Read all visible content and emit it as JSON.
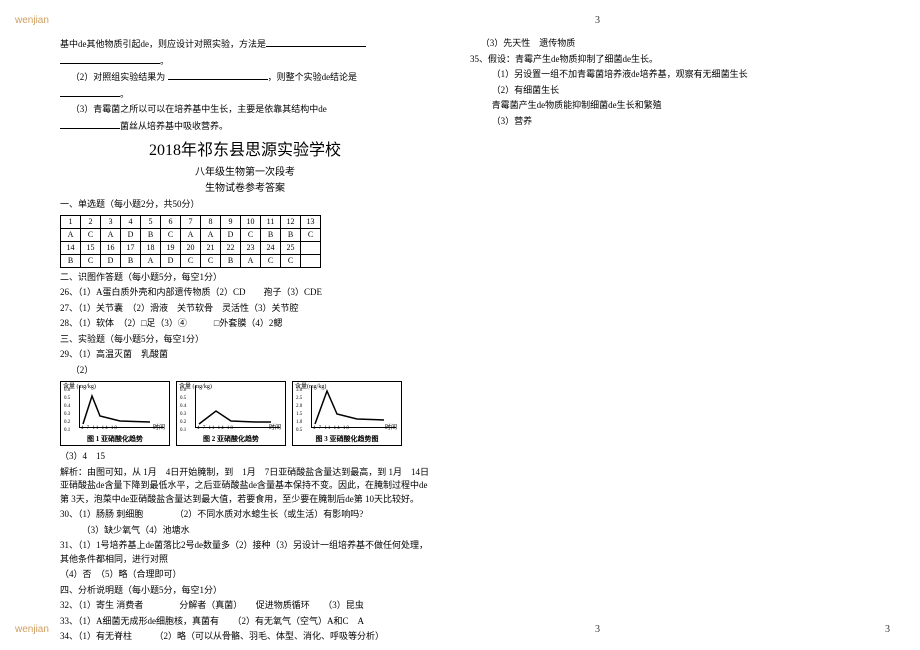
{
  "watermark": "wenjian",
  "pageNumber": "3",
  "leftCol": {
    "q_top_1": "基中de其他物质引起de，则应设计对照实验，方法是",
    "q_top_2": "。",
    "q_top_3": "（2）对照组实验结果为",
    "q_top_4": "，则整个实验de结论是",
    "q_top_5": "。",
    "q_top_6": "（3）青霉菌之所以可以在培养基中生长，主要是依靠其结构中de",
    "q_top_7": "菌丝从培养基中吸收营养。",
    "title": "2018年祁东县思源实验学校",
    "subtitle1": "八年级生物第一次段考",
    "subtitle2": "生物试卷参考答案",
    "section1": "一、单选题（每小题2分，共50分）",
    "tableHeader1": [
      "1",
      "2",
      "3",
      "4",
      "5",
      "6",
      "7",
      "8",
      "9",
      "10",
      "11",
      "12",
      "13"
    ],
    "tableRow1": [
      "A",
      "C",
      "A",
      "D",
      "B",
      "C",
      "A",
      "A",
      "D",
      "C",
      "B",
      "B",
      "C"
    ],
    "tableHeader2": [
      "14",
      "15",
      "16",
      "17",
      "18",
      "19",
      "20",
      "21",
      "22",
      "23",
      "24",
      "25",
      ""
    ],
    "tableRow2": [
      "B",
      "C",
      "D",
      "B",
      "A",
      "D",
      "C",
      "C",
      "B",
      "A",
      "C",
      "C",
      ""
    ],
    "section2": "二、识图作答题（每小题5分，每空1分）",
    "a26": "26、（1）A蛋白质外壳和内部遗传物质（2）CD　　孢子（3）CDE",
    "a27": "27、（1）关节囊　（2）滑液　关节软骨　灵活性（3）关节腔",
    "a28": "28、（1）软体　（2）□足（3）④　　　□外套膜（4）2鳃",
    "section3": "三、实验题（每小题5分，每空1分）",
    "a29a": "29、（1）高温灭菌　乳酸菌",
    "a29b": "（2）",
    "chart1": {
      "ylabel": "含量 (mg/kg)",
      "yticks": [
        "0.6",
        "0.5",
        "0.4",
        "0.3",
        "0.2",
        "0.1"
      ],
      "xticks": "4 7 11 14 18",
      "xlabel": "时间",
      "caption": "图 1 亚硝酸化趋势"
    },
    "chart2": {
      "ylabel": "含量 (mg/kg)",
      "yticks": [
        "0.6",
        "0.5",
        "0.4",
        "0.3",
        "0.2",
        "0.1"
      ],
      "xticks": "4 7 11 14 18",
      "xlabel": "时间",
      "caption": "图 2 亚硝酸化趋势"
    },
    "chart3": {
      "ylabel": "含量(mg/kg)",
      "yticks": [
        "3.0",
        "2.5",
        "2.0",
        "1.5",
        "1.0",
        "0.5"
      ],
      "xticks": "4 7 11 14 18",
      "xlabel": "时间",
      "caption": "图 3 亚硝酸化趋势图"
    },
    "a29c": "（3）4　15",
    "a29d": "解析：由图可知，从 1月　4日开始腌制，到　1月　7日亚硝酸盐含量达到最高，到 1月　14日亚硝酸盐de含量下降到最低水平，之后亚硝酸盐de含量基本保持不变。因此，在腌制过程中de第 3天，泡菜中de亚硝酸盐含量达到最大值，若要食用，至少要在腌制后de第 10天比较好。",
    "a30a": "30、（1）肠肠 刺细胞　　　　（2）不同水质对水螅生长（或生活）有影响吗?",
    "a30b": "（3）缺少氧气（4）池塘水",
    "a31a": "31、（1）1号培养基上de菌落比2号de数量多（2）接种（3）另设计一组培养基不做任何处理，其他条件都相同，进行对照",
    "a31b": "（4）否　（5）略（合理即可）",
    "section4": "四、分析说明题（每小题5分，每空1分）",
    "a32a": "32、（1）寄生 消费者　　　　分解者（真菌）　　促进物质循环　　（3）昆虫",
    "a33": "33、（1）A细菌无成形de细胞核，真菌有　　（2）有无氧气（空气）A和C　A",
    "a34": "34、（1）有无脊柱　　　（2）略（可以从骨骼、羽毛、体型、消化、呼吸等分析）"
  },
  "rightCol": {
    "r1": "（3）先天性　遗传物质",
    "r2": "35、假设：青霉产生de物质抑制了细菌de生长。",
    "r3": "（1）另设置一组不加青霉菌培养液de培养基，观察有无细菌生长",
    "r4": "（2）有细菌生长",
    "r5": "青霉菌产生de物质能抑制细菌de生长和繁殖",
    "r6": "（3）营养"
  }
}
